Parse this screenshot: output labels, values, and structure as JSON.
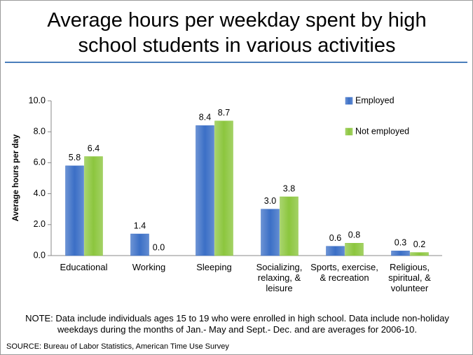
{
  "chart_data": {
    "type": "bar",
    "title": "Average hours per weekday spent by high school students in various activities",
    "y_label": "Average hours per day",
    "categories": [
      "Educational",
      "Working",
      "Sleeping",
      "Socializing, relaxing, & leisure",
      "Sports, exercise, & recreation",
      "Religious, spiritual, & volunteer"
    ],
    "series": [
      {
        "name": "Employed",
        "color": "#3b6fc6",
        "values": [
          5.8,
          1.4,
          8.4,
          3.0,
          0.6,
          0.3
        ],
        "value_labels": [
          "5.8",
          "1.4",
          "8.4",
          "3.0",
          "0.6",
          "0.3"
        ]
      },
      {
        "name": "Not employed",
        "color": "#8cc63e",
        "values": [
          6.4,
          0.0,
          8.7,
          3.8,
          0.8,
          0.2
        ],
        "value_labels": [
          "6.4",
          "0.0",
          "8.7",
          "3.8",
          "0.8",
          "0.2"
        ]
      }
    ],
    "ylim": [
      0,
      10
    ],
    "yticks": [
      {
        "value": 0,
        "label": "0.0"
      },
      {
        "value": 2,
        "label": "2.0"
      },
      {
        "value": 4,
        "label": "4.0"
      },
      {
        "value": 6,
        "label": "6.0"
      },
      {
        "value": 8,
        "label": "8.0"
      },
      {
        "value": 10,
        "label": "10.0"
      }
    ],
    "grid": false,
    "legend_position": "right",
    "note": "NOTE: Data include individuals ages 15 to 19 who were enrolled in high school. Data include non-holiday weekdays during the months of Jan.- May and Sept.- Dec. and are averages for 2006-10.",
    "source": "SOURCE: Bureau of Labor Statistics, American Time Use Survey"
  }
}
